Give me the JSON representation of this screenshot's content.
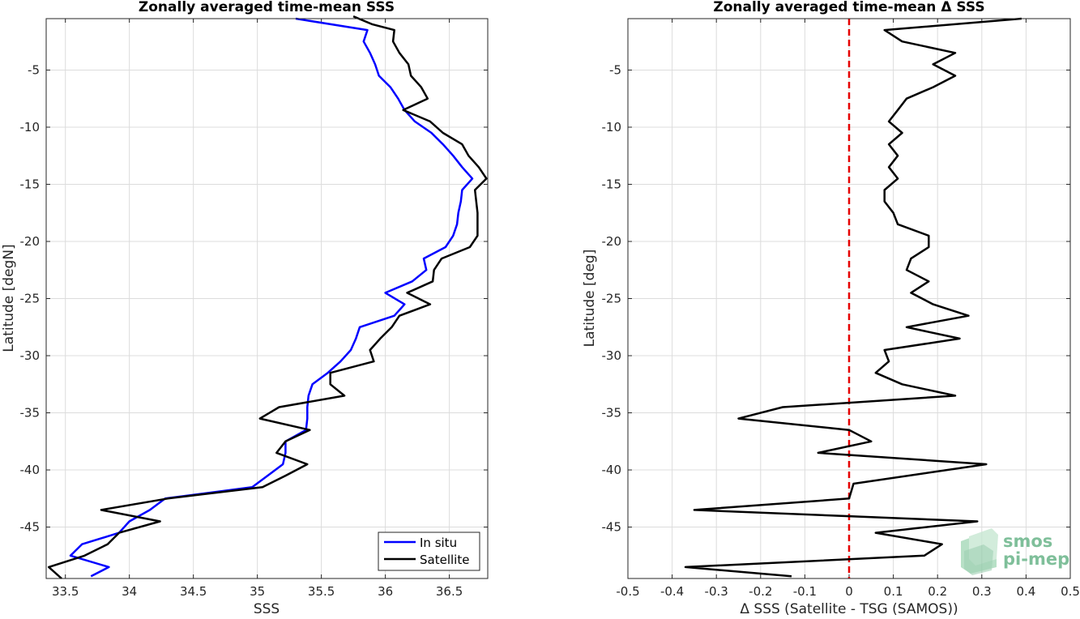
{
  "chart_data": [
    {
      "type": "line",
      "title": "Zonally averaged time-mean SSS",
      "xlabel": "SSS",
      "ylabel": "Latitude [degN]",
      "xlim": [
        33.35,
        36.8
      ],
      "ylim": [
        -49.5,
        -0.5
      ],
      "xticks": [
        "33.5",
        "34",
        "34.5",
        "35",
        "35.5",
        "36",
        "36.5"
      ],
      "xtick_values": [
        33.5,
        34,
        34.5,
        35,
        35.5,
        36,
        36.5
      ],
      "yticks": [
        "-5",
        "-10",
        "-15",
        "-20",
        "-25",
        "-30",
        "-35",
        "-40",
        "-45"
      ],
      "ytick_values": [
        -5,
        -10,
        -15,
        -20,
        -25,
        -30,
        -35,
        -40,
        -45
      ],
      "grid": true,
      "legend_position": "bottom-right",
      "series": [
        {
          "name": "In situ",
          "color": "#0000ff",
          "points": [
            [
              35.3,
              -0.5
            ],
            [
              35.86,
              -1.5
            ],
            [
              35.83,
              -2.5
            ],
            [
              35.88,
              -3.5
            ],
            [
              35.92,
              -4.5
            ],
            [
              35.95,
              -5.5
            ],
            [
              36.04,
              -6.5
            ],
            [
              36.1,
              -7.5
            ],
            [
              36.15,
              -8.5
            ],
            [
              36.23,
              -9.5
            ],
            [
              36.36,
              -10.5
            ],
            [
              36.45,
              -11.5
            ],
            [
              36.53,
              -12.5
            ],
            [
              36.6,
              -13.5
            ],
            [
              36.68,
              -14.5
            ],
            [
              36.6,
              -15.5
            ],
            [
              36.59,
              -16.5
            ],
            [
              36.57,
              -17.5
            ],
            [
              36.56,
              -18.5
            ],
            [
              36.53,
              -19.5
            ],
            [
              36.47,
              -20.5
            ],
            [
              36.3,
              -21.5
            ],
            [
              36.32,
              -22.5
            ],
            [
              36.21,
              -23.5
            ],
            [
              36.0,
              -24.5
            ],
            [
              36.15,
              -25.5
            ],
            [
              36.07,
              -26.5
            ],
            [
              35.8,
              -27.5
            ],
            [
              35.77,
              -28.5
            ],
            [
              35.73,
              -29.5
            ],
            [
              35.65,
              -30.5
            ],
            [
              35.55,
              -31.5
            ],
            [
              35.43,
              -32.5
            ],
            [
              35.4,
              -33.5
            ],
            [
              35.39,
              -34.5
            ],
            [
              35.39,
              -35.5
            ],
            [
              35.38,
              -36.5
            ],
            [
              35.22,
              -37.5
            ],
            [
              35.22,
              -38.5
            ],
            [
              35.2,
              -39.5
            ],
            [
              35.08,
              -40.5
            ],
            [
              34.96,
              -41.5
            ],
            [
              34.28,
              -42.5
            ],
            [
              34.16,
              -43.5
            ],
            [
              34.0,
              -44.5
            ],
            [
              33.92,
              -45.5
            ],
            [
              33.63,
              -46.5
            ],
            [
              33.54,
              -47.5
            ],
            [
              33.84,
              -48.5
            ],
            [
              33.7,
              -49.3
            ]
          ]
        },
        {
          "name": "Satellite",
          "color": "#000000",
          "points": [
            [
              35.75,
              -0.3
            ],
            [
              35.9,
              -1.0
            ],
            [
              36.07,
              -1.5
            ],
            [
              36.06,
              -2.5
            ],
            [
              36.11,
              -3.5
            ],
            [
              36.18,
              -4.5
            ],
            [
              36.2,
              -5.5
            ],
            [
              36.28,
              -6.5
            ],
            [
              36.33,
              -7.5
            ],
            [
              36.14,
              -8.5
            ],
            [
              36.35,
              -9.5
            ],
            [
              36.45,
              -10.5
            ],
            [
              36.6,
              -11.5
            ],
            [
              36.65,
              -12.5
            ],
            [
              36.73,
              -13.5
            ],
            [
              36.79,
              -14.5
            ],
            [
              36.7,
              -15.5
            ],
            [
              36.71,
              -16.5
            ],
            [
              36.72,
              -17.5
            ],
            [
              36.72,
              -18.5
            ],
            [
              36.72,
              -19.5
            ],
            [
              36.66,
              -20.5
            ],
            [
              36.44,
              -21.5
            ],
            [
              36.38,
              -22.5
            ],
            [
              36.37,
              -23.5
            ],
            [
              36.17,
              -24.5
            ],
            [
              36.35,
              -25.5
            ],
            [
              36.11,
              -26.5
            ],
            [
              36.05,
              -27.5
            ],
            [
              35.96,
              -28.5
            ],
            [
              35.88,
              -29.5
            ],
            [
              35.91,
              -30.5
            ],
            [
              35.57,
              -31.5
            ],
            [
              35.57,
              -32.5
            ],
            [
              35.68,
              -33.5
            ],
            [
              35.17,
              -34.5
            ],
            [
              35.02,
              -35.5
            ],
            [
              35.41,
              -36.5
            ],
            [
              35.22,
              -37.5
            ],
            [
              35.15,
              -38.5
            ],
            [
              35.39,
              -39.5
            ],
            [
              35.22,
              -40.5
            ],
            [
              35.04,
              -41.5
            ],
            [
              34.3,
              -42.5
            ],
            [
              33.78,
              -43.5
            ],
            [
              34.24,
              -44.5
            ],
            [
              33.92,
              -45.5
            ],
            [
              33.83,
              -46.5
            ],
            [
              33.65,
              -47.5
            ],
            [
              33.37,
              -48.5
            ],
            [
              33.47,
              -49.5
            ]
          ]
        }
      ]
    },
    {
      "type": "line",
      "title": "Zonally averaged time-mean Δ SSS",
      "xlabel": "Δ SSS (Satellite - TSG (SAMOS))",
      "ylabel": "Latitude [deg]",
      "xlim": [
        -0.5,
        0.5
      ],
      "ylim": [
        -49.5,
        -0.5
      ],
      "xticks": [
        "-0.5",
        "-0.4",
        "-0.3",
        "-0.2",
        "-0.1",
        "0",
        "0.1",
        "0.2",
        "0.3",
        "0.4",
        "0.5"
      ],
      "xtick_values": [
        -0.5,
        -0.4,
        -0.3,
        -0.2,
        -0.1,
        0,
        0.1,
        0.2,
        0.3,
        0.4,
        0.5
      ],
      "yticks": [
        "-5",
        "-10",
        "-15",
        "-20",
        "-25",
        "-30",
        "-35",
        "-40",
        "-45"
      ],
      "ytick_values": [
        -5,
        -10,
        -15,
        -20,
        -25,
        -30,
        -35,
        -40,
        -45
      ],
      "grid": true,
      "reference_line": {
        "x": 0,
        "color": "#e60000",
        "style": "dashed"
      },
      "series": [
        {
          "color": "#000000",
          "points": [
            [
              0.39,
              -0.5
            ],
            [
              0.08,
              -1.5
            ],
            [
              0.12,
              -2.5
            ],
            [
              0.24,
              -3.5
            ],
            [
              0.19,
              -4.5
            ],
            [
              0.24,
              -5.5
            ],
            [
              0.19,
              -6.5
            ],
            [
              0.13,
              -7.5
            ],
            [
              0.11,
              -8.5
            ],
            [
              0.09,
              -9.5
            ],
            [
              0.12,
              -10.5
            ],
            [
              0.09,
              -11.5
            ],
            [
              0.11,
              -12.5
            ],
            [
              0.09,
              -13.5
            ],
            [
              0.11,
              -14.5
            ],
            [
              0.08,
              -15.5
            ],
            [
              0.08,
              -16.5
            ],
            [
              0.1,
              -17.5
            ],
            [
              0.11,
              -18.5
            ],
            [
              0.18,
              -19.5
            ],
            [
              0.18,
              -20.5
            ],
            [
              0.14,
              -21.5
            ],
            [
              0.13,
              -22.5
            ],
            [
              0.18,
              -23.5
            ],
            [
              0.14,
              -24.5
            ],
            [
              0.19,
              -25.5
            ],
            [
              0.27,
              -26.5
            ],
            [
              0.13,
              -27.5
            ],
            [
              0.25,
              -28.5
            ],
            [
              0.08,
              -29.5
            ],
            [
              0.09,
              -30.5
            ],
            [
              0.06,
              -31.5
            ],
            [
              0.12,
              -32.5
            ],
            [
              0.24,
              -33.5
            ],
            [
              -0.15,
              -34.5
            ],
            [
              -0.25,
              -35.5
            ],
            [
              0.0,
              -36.5
            ],
            [
              0.05,
              -37.5
            ],
            [
              -0.07,
              -38.5
            ],
            [
              0.31,
              -39.5
            ],
            [
              0.01,
              -41.2
            ],
            [
              0.0,
              -42.5
            ],
            [
              -0.35,
              -43.5
            ],
            [
              0.29,
              -44.5
            ],
            [
              0.06,
              -45.5
            ],
            [
              0.21,
              -46.5
            ],
            [
              0.17,
              -47.5
            ],
            [
              -0.37,
              -48.5
            ],
            [
              -0.13,
              -49.3
            ]
          ]
        }
      ]
    }
  ],
  "legend": {
    "items": [
      "In situ",
      "Satellite"
    ]
  },
  "logo": {
    "line1": "smos",
    "line2": "pi-mep"
  }
}
